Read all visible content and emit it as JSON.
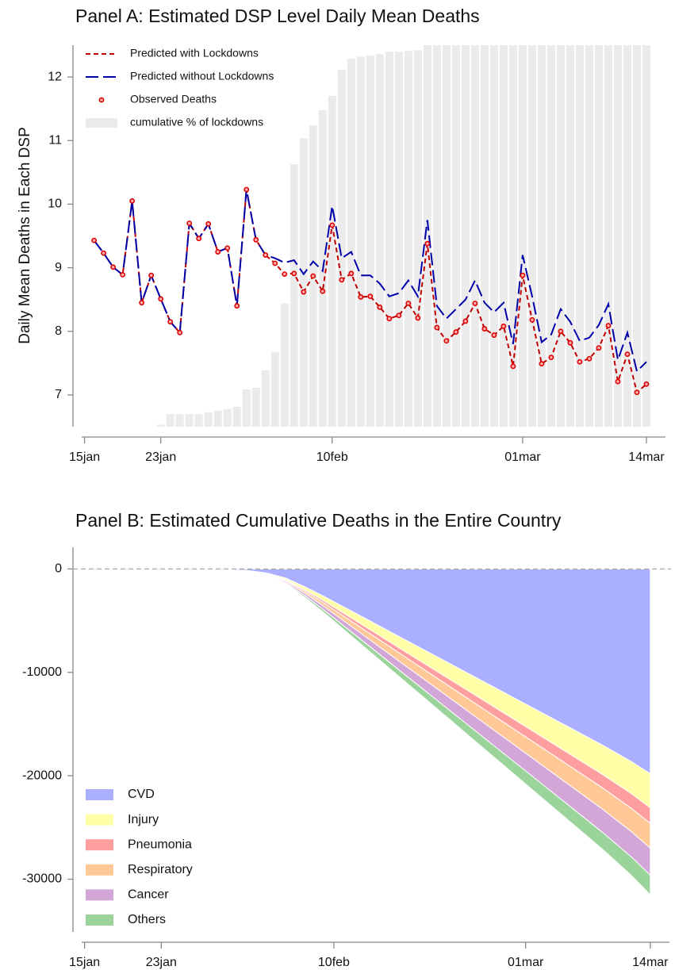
{
  "chart_data": [
    {
      "type": "line",
      "title": "Panel A: Estimated DSP Level Daily Mean Deaths",
      "y_label": "Daily Mean Deaths in Each DSP",
      "x": [
        1,
        2,
        3,
        4,
        5,
        6,
        7,
        8,
        9,
        10,
        11,
        12,
        13,
        14,
        15,
        16,
        17,
        18,
        19,
        20,
        21,
        22,
        23,
        24,
        25,
        26,
        27,
        28,
        29,
        30,
        31,
        32,
        33,
        34,
        35,
        36,
        37,
        38,
        39,
        40,
        41,
        42,
        43,
        44,
        45,
        46,
        47,
        48,
        49,
        50,
        51,
        52,
        53,
        54,
        55,
        56,
        57,
        58,
        59
      ],
      "xlim": [
        -0.3,
        61
      ],
      "xticks": [
        {
          "value": 0,
          "label": "15jan"
        },
        {
          "value": 8,
          "label": "23jan"
        },
        {
          "value": 26,
          "label": "10feb"
        },
        {
          "value": 46,
          "label": "01mar"
        },
        {
          "value": 59,
          "label": "14mar"
        }
      ],
      "ylim": [
        6.5,
        12.5
      ],
      "yticks": [
        7,
        8,
        9,
        10,
        11,
        12
      ],
      "y2lim": [
        0,
        100
      ],
      "legend": "top-left",
      "series": [
        {
          "name": "cumulative % of lockdowns",
          "color": "#ebebeb",
          "style": "bar",
          "axis": "y2",
          "values": [
            null,
            null,
            null,
            null,
            null,
            null,
            null,
            0.5,
            3.3,
            3.3,
            3.3,
            3.3,
            3.8,
            4.2,
            4.6,
            5.2,
            9.8,
            10.2,
            14.8,
            19.6,
            32.3,
            68.8,
            75.6,
            79,
            83,
            86.7,
            93.5,
            96.5,
            97,
            97.3,
            97.7,
            98.3,
            98.3,
            98.5,
            98.7,
            100,
            100,
            100,
            100,
            100,
            100,
            100,
            100,
            100,
            100,
            100,
            100,
            100,
            100,
            100,
            100,
            100,
            100,
            100,
            100,
            100,
            100,
            100,
            100
          ]
        },
        {
          "name": "Predicted with Lockdowns",
          "color": "#c00000",
          "style": "dash",
          "values": [
            9.43,
            9.23,
            9.01,
            8.89,
            10.05,
            8.45,
            8.88,
            8.51,
            8.15,
            7.98,
            9.7,
            9.46,
            9.69,
            9.25,
            9.31,
            8.4,
            10.23,
            9.44,
            9.2,
            9.07,
            8.9,
            8.91,
            8.62,
            8.87,
            8.63,
            9.67,
            8.81,
            8.91,
            8.54,
            8.55,
            8.38,
            8.2,
            8.25,
            8.44,
            8.21,
            9.38,
            8.06,
            7.85,
            7.99,
            8.16,
            8.44,
            8.04,
            7.94,
            8.08,
            7.45,
            8.88,
            8.18,
            7.49,
            7.59,
            8.0,
            7.82,
            7.52,
            7.57,
            7.74,
            8.09,
            7.21,
            7.64,
            7.04,
            7.17
          ]
        },
        {
          "name": "Predicted without Lockdowns",
          "color": "#0000a8",
          "style": "longdash",
          "values": [
            9.43,
            9.23,
            9.01,
            8.89,
            10.05,
            8.45,
            8.88,
            8.51,
            8.15,
            7.98,
            9.7,
            9.46,
            9.69,
            9.25,
            9.31,
            8.4,
            10.23,
            9.44,
            9.2,
            9.15,
            9.08,
            9.12,
            8.9,
            9.1,
            8.95,
            9.97,
            9.15,
            9.25,
            8.88,
            8.88,
            8.75,
            8.55,
            8.6,
            8.8,
            8.55,
            9.75,
            8.4,
            8.2,
            8.35,
            8.5,
            8.8,
            8.45,
            8.3,
            8.45,
            7.8,
            9.2,
            8.55,
            7.83,
            7.95,
            8.35,
            8.15,
            7.85,
            7.9,
            8.1,
            8.43,
            7.55,
            7.98,
            7.37,
            7.52
          ]
        },
        {
          "name": "Observed Deaths",
          "color": "#e00000",
          "style": "marker",
          "values": [
            9.43,
            9.23,
            9.01,
            8.89,
            10.05,
            8.45,
            8.88,
            8.51,
            8.15,
            7.98,
            9.7,
            9.46,
            9.69,
            9.25,
            9.31,
            8.4,
            10.23,
            9.44,
            9.2,
            9.07,
            8.9,
            8.91,
            8.62,
            8.87,
            8.63,
            9.67,
            8.81,
            8.91,
            8.54,
            8.55,
            8.38,
            8.2,
            8.25,
            8.44,
            8.21,
            9.38,
            8.06,
            7.85,
            7.99,
            8.16,
            8.44,
            8.04,
            7.94,
            8.08,
            7.45,
            8.88,
            8.18,
            7.49,
            7.59,
            8.0,
            7.82,
            7.52,
            7.57,
            7.74,
            8.09,
            7.21,
            7.64,
            7.04,
            7.17
          ]
        }
      ]
    },
    {
      "type": "stacked_area",
      "title": "Panel B: Estimated Cumulative Deaths in the Entire Country",
      "x": [
        10,
        14,
        17,
        19,
        21,
        23,
        25,
        27,
        30,
        33,
        36,
        39,
        42,
        45,
        48,
        51,
        54,
        57,
        59
      ],
      "xlim": [
        -0.3,
        61
      ],
      "xticks": [
        {
          "value": 0,
          "label": "15jan"
        },
        {
          "value": 8,
          "label": "23jan"
        },
        {
          "value": 26,
          "label": "10feb"
        },
        {
          "value": 46,
          "label": "01mar"
        },
        {
          "value": 59,
          "label": "14mar"
        }
      ],
      "ylim": [
        -35100,
        2100
      ],
      "yticks": [
        0,
        -10000,
        -20000,
        -30000
      ],
      "legend": "bottom-left",
      "series": [
        {
          "name": "CVD",
          "color": "#aab0ff",
          "values": [
            0,
            -40,
            -158,
            -396,
            -891,
            -1742,
            -2673,
            -3663,
            -5148,
            -6633,
            -8118,
            -9603,
            -11088,
            -12573,
            -14058,
            -15543,
            -17028,
            -18612,
            -19800
          ]
        },
        {
          "name": "Injury",
          "color": "#ffffa8",
          "values": [
            0,
            -7,
            -26,
            -66,
            -149,
            -290,
            -446,
            -611,
            -858,
            -1106,
            -1353,
            -1601,
            -1848,
            -2096,
            -2343,
            -2591,
            -2838,
            -3102,
            -3300
          ]
        },
        {
          "name": "Pneumonia",
          "color": "#ff9e9e",
          "values": [
            0,
            -3,
            -12,
            -30,
            -68,
            -132,
            -203,
            -278,
            -390,
            -503,
            -615,
            -728,
            -840,
            -953,
            -1065,
            -1178,
            -1290,
            -1410,
            -1500
          ]
        },
        {
          "name": "Respiratory",
          "color": "#ffc896",
          "values": [
            0,
            -5,
            -19,
            -48,
            -108,
            -211,
            -324,
            -444,
            -624,
            -804,
            -984,
            -1164,
            -1344,
            -1524,
            -1704,
            -1884,
            -2064,
            -2256,
            -2400
          ]
        },
        {
          "name": "Cancer",
          "color": "#d3a6d8",
          "values": [
            0,
            -5,
            -21,
            -52,
            -117,
            -229,
            -351,
            -481,
            -676,
            -871,
            -1066,
            -1261,
            -1456,
            -1651,
            -1846,
            -2041,
            -2236,
            -2444,
            -2600
          ]
        },
        {
          "name": "Others",
          "color": "#9bd49b",
          "values": [
            0,
            -4,
            -15,
            -38,
            -86,
            -167,
            -257,
            -352,
            -494,
            -637,
            -779,
            -922,
            -1064,
            -1207,
            -1349,
            -1492,
            -1634,
            -1786,
            -1900
          ]
        }
      ]
    }
  ]
}
